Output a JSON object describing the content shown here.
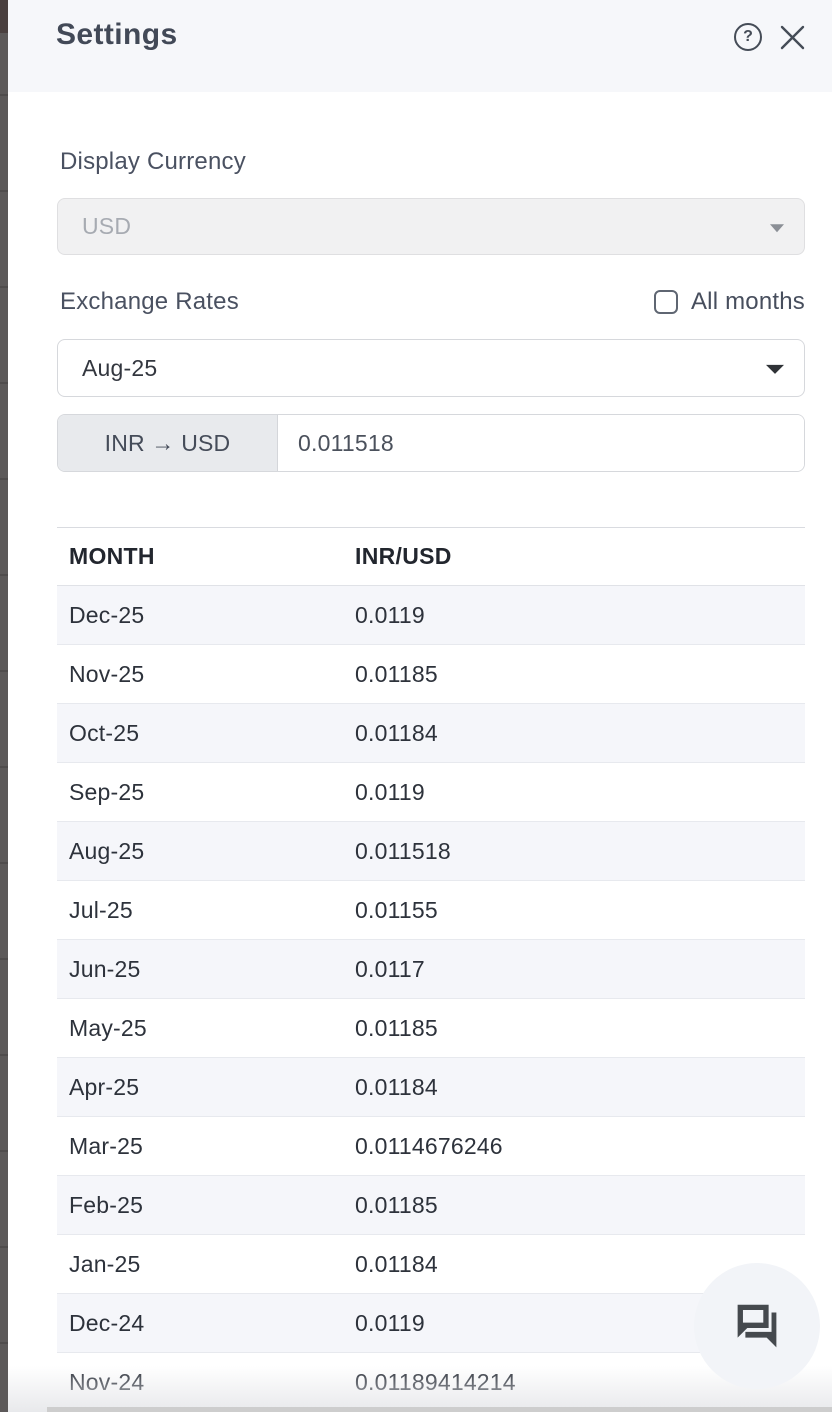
{
  "header": {
    "title": "Settings",
    "help_glyph": "?"
  },
  "display_currency": {
    "label": "Display Currency",
    "value": "USD",
    "disabled": true
  },
  "exchange_rates": {
    "label": "Exchange Rates",
    "all_months_label": "All months",
    "all_months_checked": false,
    "selected_month": "Aug-25",
    "pair_label": "INR → USD",
    "rate_value": "0.011518"
  },
  "table": {
    "columns": [
      "MONTH",
      "INR/USD"
    ],
    "rows": [
      {
        "month": "Dec-25",
        "rate": "0.0119"
      },
      {
        "month": "Nov-25",
        "rate": "0.01185"
      },
      {
        "month": "Oct-25",
        "rate": "0.01184"
      },
      {
        "month": "Sep-25",
        "rate": "0.0119"
      },
      {
        "month": "Aug-25",
        "rate": "0.011518"
      },
      {
        "month": "Jul-25",
        "rate": "0.01155"
      },
      {
        "month": "Jun-25",
        "rate": "0.0117"
      },
      {
        "month": "May-25",
        "rate": "0.01185"
      },
      {
        "month": "Apr-25",
        "rate": "0.01184"
      },
      {
        "month": "Mar-25",
        "rate": "0.0114676246"
      },
      {
        "month": "Feb-25",
        "rate": "0.01185"
      },
      {
        "month": "Jan-25",
        "rate": "0.01184"
      },
      {
        "month": "Dec-24",
        "rate": "0.0119"
      },
      {
        "month": "Nov-24",
        "rate": "0.01189414214"
      }
    ]
  },
  "colors": {
    "header_bg": "#f6f7fa",
    "stripe_bg": "#f5f6fa",
    "addon_bg": "#e8eaed",
    "backdrop": "#5c5959",
    "text_dark": "#2d323b"
  }
}
